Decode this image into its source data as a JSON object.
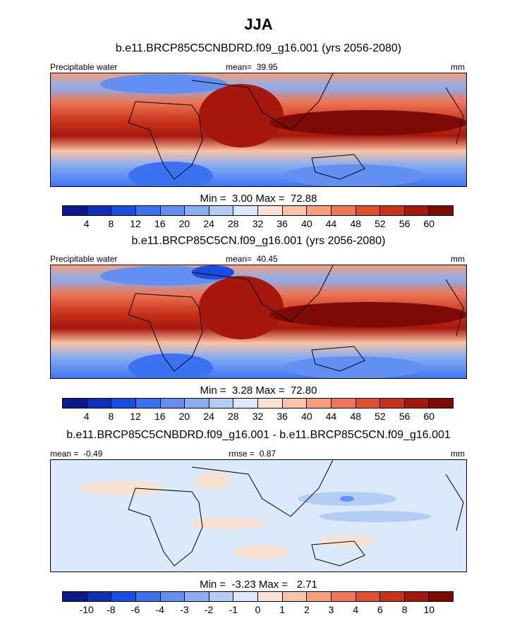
{
  "season_title": "JJA",
  "colors": {
    "abs_levels": [
      "#0a1a8c",
      "#0f31b8",
      "#1a4ee0",
      "#3b72f2",
      "#628ff2",
      "#8aaef0",
      "#b3cdf5",
      "#dce9fb",
      "#fbe3d3",
      "#f8c3a6",
      "#f59e7b",
      "#ef7656",
      "#e0502f",
      "#c9321a",
      "#a6180e",
      "#7d0a05"
    ],
    "diff_levels": [
      "#0a1a8c",
      "#0f31b8",
      "#1a4ee0",
      "#3b72f2",
      "#628ff2",
      "#8aaef0",
      "#b3cdf5",
      "#dce9fb",
      "#fbe3d3",
      "#f8c3a6",
      "#f59e7b",
      "#ef7656",
      "#e0502f",
      "#c9321a",
      "#a6180e",
      "#7d0a05"
    ]
  },
  "chart_data": [
    {
      "type": "heatmap",
      "title": "b.e11.BRCP85C5CNBDRD.f09_g16.001 (yrs 2056-2080)",
      "variable": "Precipitable water",
      "units": "mm",
      "mean_label": "mean=",
      "mean": "39.95",
      "min_label": "Min =",
      "min": "3.00",
      "max_label": "Max =",
      "max": "72.88",
      "colorbar_ticks": [
        "4",
        "8",
        "12",
        "16",
        "20",
        "24",
        "28",
        "32",
        "36",
        "40",
        "44",
        "48",
        "52",
        "56",
        "60"
      ]
    },
    {
      "type": "heatmap",
      "title": "b.e11.BRCP85C5CN.f09_g16.001 (yrs 2056-2080)",
      "variable": "Precipitable water",
      "units": "mm",
      "mean_label": "mean=",
      "mean": "40.45",
      "min_label": "Min =",
      "min": "3.28",
      "max_label": "Max =",
      "max": "72.80",
      "colorbar_ticks": [
        "4",
        "8",
        "12",
        "16",
        "20",
        "24",
        "28",
        "32",
        "36",
        "40",
        "44",
        "48",
        "52",
        "56",
        "60"
      ]
    },
    {
      "type": "heatmap",
      "title": "b.e11.BRCP85C5CNBDRD.f09_g16.001 - b.e11.BRCP85C5CN.f09_g16.001",
      "units": "mm",
      "mean_label": "mean =",
      "mean": "-0.49",
      "rmse_label": "rmse =",
      "rmse": "0.87",
      "min_label": "Min =",
      "min": "-3.23",
      "max_label": "Max =",
      "max": "2.71",
      "colorbar_ticks": [
        "-10",
        "-8",
        "-6",
        "-4",
        "-3",
        "-2",
        "-1",
        "0",
        "1",
        "2",
        "3",
        "4",
        "6",
        "8",
        "10"
      ]
    }
  ]
}
